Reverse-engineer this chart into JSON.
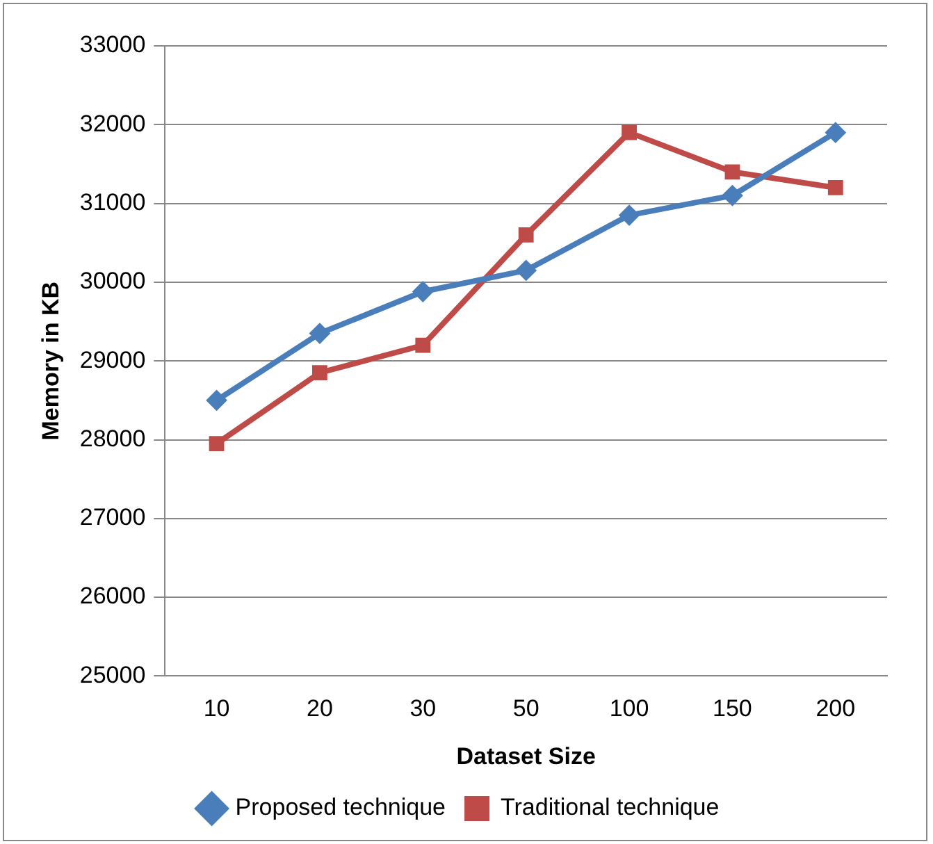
{
  "chart_data": {
    "type": "line",
    "xlabel": "Dataset Size",
    "ylabel": "Memory in KB",
    "categories": [
      "10",
      "20",
      "30",
      "50",
      "100",
      "150",
      "200"
    ],
    "series": [
      {
        "name": "Proposed technique",
        "color": "#4a7ebb",
        "marker": "diamond",
        "values": [
          28500,
          29350,
          29880,
          30150,
          30850,
          31100,
          31900
        ]
      },
      {
        "name": "Traditional technique",
        "color": "#be4b48",
        "marker": "square",
        "values": [
          27950,
          28850,
          29200,
          30600,
          31900,
          31400,
          31200
        ]
      }
    ],
    "ylim": [
      25000,
      33000
    ],
    "yticks": [
      25000,
      26000,
      27000,
      28000,
      29000,
      30000,
      31000,
      32000,
      33000
    ],
    "grid": "y",
    "legend": "bottom",
    "line_style": "solid"
  }
}
